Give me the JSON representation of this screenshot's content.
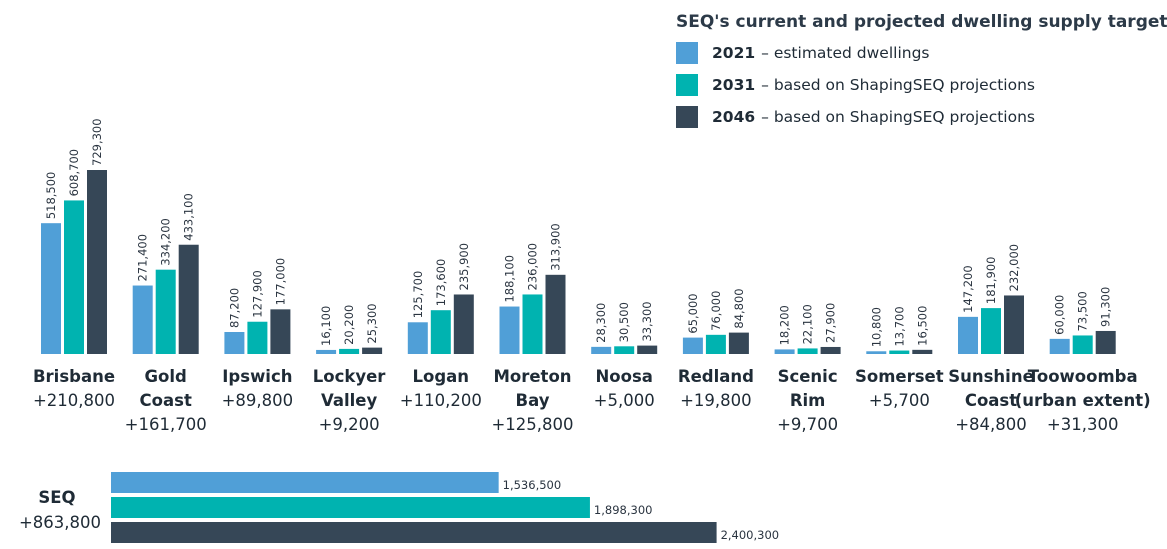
{
  "chart_data": {
    "type": "bar",
    "title": "SEQ's current and projected dwelling supply targets",
    "legend_position": "top-right",
    "series": [
      {
        "year": "2021",
        "desc": "– estimated dwellings",
        "color": "#509fd7",
        "values": [
          518500,
          271400,
          87200,
          16100,
          125700,
          188100,
          28300,
          65000,
          18200,
          10800,
          147200,
          60000
        ],
        "labels": [
          "518,500",
          "271,400",
          "87,200",
          "16,100",
          "125,700",
          "188,100",
          "28,300",
          "65,000",
          "18,200",
          "10,800",
          "147,200",
          "60,000"
        ]
      },
      {
        "year": "2031",
        "desc": "– based on ShapingSEQ projections",
        "color": "#00b3b0",
        "values": [
          608700,
          334200,
          127900,
          20200,
          173600,
          236000,
          30500,
          76000,
          22100,
          13700,
          181900,
          73500
        ],
        "labels": [
          "608,700",
          "334,200",
          "127,900",
          "20,200",
          "173,600",
          "236,000",
          "30,500",
          "76,000",
          "22,100",
          "13,700",
          "181,900",
          "73,500"
        ]
      },
      {
        "year": "2046",
        "desc": "– based on ShapingSEQ projections",
        "color": "#364757",
        "values": [
          729300,
          433100,
          177000,
          25300,
          235900,
          313900,
          33300,
          84800,
          27900,
          16500,
          232000,
          91300
        ],
        "labels": [
          "729,300",
          "433,100",
          "177,000",
          "25,300",
          "235,900",
          "313,900",
          "33,300",
          "84,800",
          "27,900",
          "16,500",
          "232,000",
          "91,300"
        ]
      }
    ],
    "categories": [
      {
        "name": [
          "Brisbane"
        ],
        "change": "+210,800"
      },
      {
        "name": [
          "Gold",
          "Coast"
        ],
        "change": "+161,700"
      },
      {
        "name": [
          "Ipswich"
        ],
        "change": "+89,800"
      },
      {
        "name": [
          "Lockyer",
          "Valley"
        ],
        "change": "+9,200"
      },
      {
        "name": [
          "Logan"
        ],
        "change": "+110,200"
      },
      {
        "name": [
          "Moreton",
          "Bay"
        ],
        "change": "+125,800"
      },
      {
        "name": [
          "Noosa"
        ],
        "change": "+5,000"
      },
      {
        "name": [
          "Redland"
        ],
        "change": "+19,800"
      },
      {
        "name": [
          "Scenic",
          "Rim"
        ],
        "change": "+9,700"
      },
      {
        "name": [
          "Somerset"
        ],
        "change": "+5,700"
      },
      {
        "name": [
          "Sunshine",
          "Coast"
        ],
        "change": "+84,800"
      },
      {
        "name": [
          "Toowoomba",
          "(urban extent)"
        ],
        "change": "+31,300"
      }
    ],
    "total": {
      "name": "SEQ",
      "change": "+863,800",
      "values": [
        1536500,
        1898300,
        2400300
      ],
      "labels": [
        "1,536,500",
        "1,898,300",
        "2,400,300"
      ]
    }
  }
}
